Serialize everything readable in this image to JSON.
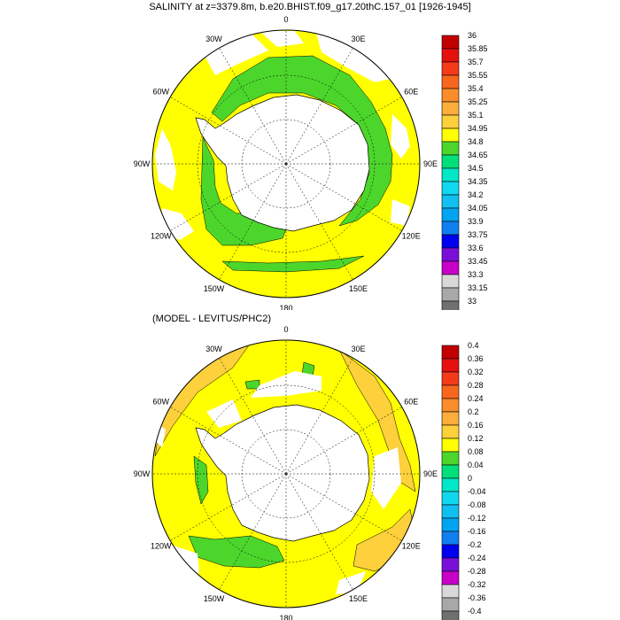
{
  "panels": [
    {
      "id": "top",
      "title": "SALINITY at z=3379.8m, b.e20.BHIST.f09_g17.20thC.157_01 [1926-1945]",
      "colorbar": {
        "labels": [
          "36",
          "35.85",
          "35.7",
          "35.55",
          "35.4",
          "35.25",
          "35.1",
          "34.95",
          "34.8",
          "34.65",
          "34.5",
          "34.35",
          "34.2",
          "34.05",
          "33.9",
          "33.75",
          "33.6",
          "33.45",
          "33.3",
          "33.15",
          "33"
        ],
        "colors": [
          "#c20000",
          "#e51010",
          "#f53a1a",
          "#f8661e",
          "#fa8c2a",
          "#fcae3a",
          "#fdd03c",
          "#ffff00",
          "#4cd62c",
          "#00e07a",
          "#00e8c8",
          "#10d8f0",
          "#10c0f0",
          "#00a4f0",
          "#1080f0",
          "#0000f0",
          "#7a10d8",
          "#c800c8",
          "#d8d8d8",
          "#a8a8a8"
        ],
        "bottom_color": "#707070"
      },
      "map": {
        "longitude_labels": [
          "0",
          "30E",
          "60E",
          "90E",
          "120E",
          "150E",
          "180",
          "150W",
          "120W",
          "90W",
          "60W",
          "30W"
        ],
        "field": {
          "background_color": "#ffff00",
          "dominant_band": "34.95-35.1",
          "secondary_band": "34.8-34.95",
          "secondary_color": "#4cd62c",
          "land_color": "#ffffff"
        }
      }
    },
    {
      "id": "bottom",
      "title": "(MODEL - LEVITUS/PHC2)",
      "colorbar": {
        "labels": [
          "0.4",
          "0.36",
          "0.32",
          "0.28",
          "0.24",
          "0.2",
          "0.16",
          "0.12",
          "0.08",
          "0.04",
          "0",
          "-0.04",
          "-0.08",
          "-0.12",
          "-0.16",
          "-0.2",
          "-0.24",
          "-0.28",
          "-0.32",
          "-0.36",
          "-0.4"
        ],
        "colors": [
          "#c20000",
          "#e51010",
          "#f53a1a",
          "#f8661e",
          "#fa8c2a",
          "#fcae3a",
          "#fdd03c",
          "#ffff00",
          "#4cd62c",
          "#00e07a",
          "#00e8c8",
          "#10d8f0",
          "#10c0f0",
          "#00a4f0",
          "#1080f0",
          "#0000f0",
          "#7a10d8",
          "#c800c8",
          "#d8d8d8",
          "#a8a8a8"
        ],
        "bottom_color": "#707070"
      },
      "map": {
        "longitude_labels": [
          "0",
          "30E",
          "60E",
          "90E",
          "120E",
          "150E",
          "180",
          "150W",
          "120W",
          "90W",
          "60W",
          "30W"
        ],
        "field": {
          "background_color": "#ffff00",
          "dominant_band": "0.12-0.16",
          "secondary_band": "0.04-0.08",
          "secondary_color": "#4cd62c",
          "accent_band": "0.16-0.2",
          "accent_color": "#fdd03c",
          "land_color": "#ffffff"
        }
      }
    }
  ]
}
